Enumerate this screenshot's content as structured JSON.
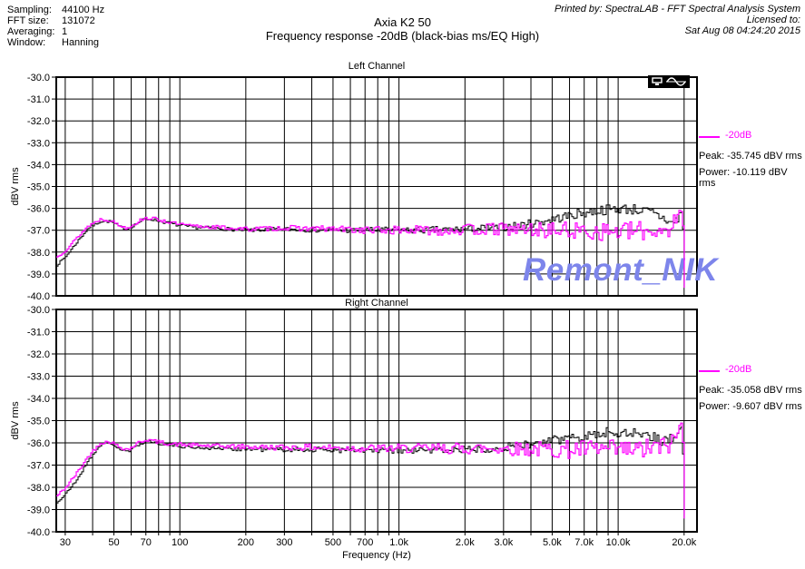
{
  "header": {
    "left": [
      {
        "label": "Sampling:",
        "value": "44100 Hz"
      },
      {
        "label": "FFT size:",
        "value": "131072"
      },
      {
        "label": "Averaging:",
        "value": "1"
      },
      {
        "label": "Window:",
        "value": "Hanning"
      }
    ],
    "title_line1": "Axia K2 50",
    "title_line2": "Frequency response -20dB (black-bias ms/EQ High)",
    "right_line1": "Printed by: SpectraLAB - FFT Spectral Analysis System",
    "right_line2": "Licensed to:",
    "right_line3": "Sat Aug 08 04:24:20 2015"
  },
  "watermark": "Remont_NIK",
  "colors": {
    "trace_black": "#000000",
    "trace_magenta": "#ff00ff",
    "watermark_blue": "#7d85eb"
  },
  "chart_data": [
    {
      "type": "line",
      "title": "Left Channel",
      "ylabel": "dBV rms",
      "xlabel": "",
      "ylim": [
        -40.0,
        -30.0
      ],
      "xlim_hz": [
        27.3,
        22900
      ],
      "x_scale": "log",
      "grid": true,
      "legend_position": "right",
      "y_ticks": [
        {
          "v": -30,
          "label": "-30.0"
        },
        {
          "v": -31,
          "label": "-31.0"
        },
        {
          "v": -32,
          "label": "-32.0"
        },
        {
          "v": -33,
          "label": "-33.0"
        },
        {
          "v": -34,
          "label": "-34.0"
        },
        {
          "v": -35,
          "label": "-35.0"
        },
        {
          "v": -36,
          "label": "-36.0"
        },
        {
          "v": -37,
          "label": "-37.0"
        },
        {
          "v": -38,
          "label": "-38.0"
        },
        {
          "v": -39,
          "label": "-39.0"
        },
        {
          "v": -40,
          "label": "-40.0"
        }
      ],
      "grid_freqs": [
        30,
        40,
        50,
        60,
        70,
        80,
        90,
        100,
        200,
        300,
        400,
        500,
        600,
        700,
        800,
        900,
        1000,
        2000,
        3000,
        4000,
        5000,
        6000,
        7000,
        8000,
        9000,
        10000,
        20000
      ],
      "x_tick_labels": [],
      "legend": {
        "label": "-20dB",
        "peak": "Peak: -35.745 dBV rms",
        "power": "Power: -10.119 dBV rms"
      },
      "series": [
        {
          "name": "black-bias ms/EQ High",
          "color": "#000000",
          "seed": 7,
          "base": [
            [
              26,
              -38.8
            ],
            [
              30,
              -38.2
            ],
            [
              34,
              -37.5
            ],
            [
              38,
              -36.9
            ],
            [
              43,
              -36.6
            ],
            [
              48,
              -36.6
            ],
            [
              53,
              -36.85
            ],
            [
              57,
              -36.95
            ],
            [
              62,
              -36.75
            ],
            [
              68,
              -36.5
            ],
            [
              74,
              -36.5
            ],
            [
              82,
              -36.6
            ],
            [
              95,
              -36.75
            ],
            [
              110,
              -36.85
            ],
            [
              140,
              -36.9
            ],
            [
              200,
              -37.0
            ],
            [
              300,
              -36.95
            ],
            [
              500,
              -37.0
            ],
            [
              800,
              -37.0
            ],
            [
              1200,
              -37.0
            ],
            [
              2000,
              -36.95
            ],
            [
              3000,
              -36.85
            ],
            [
              4000,
              -36.7
            ],
            [
              5000,
              -36.5
            ],
            [
              6500,
              -36.25
            ],
            [
              8000,
              -36.1
            ],
            [
              10000,
              -36.0
            ],
            [
              12000,
              -36.05
            ],
            [
              14000,
              -36.2
            ],
            [
              16000,
              -36.45
            ],
            [
              17500,
              -36.7
            ],
            [
              18500,
              -36.5
            ],
            [
              19300,
              -36.2
            ],
            [
              19700,
              -37.0
            ],
            [
              20000,
              -38.3
            ],
            [
              20300,
              -38.6
            ]
          ],
          "noise": [
            [
              26,
              0.05
            ],
            [
              100,
              0.07
            ],
            [
              300,
              0.1
            ],
            [
              1000,
              0.15
            ],
            [
              3000,
              0.18
            ],
            [
              6000,
              0.22
            ],
            [
              12000,
              0.25
            ],
            [
              17000,
              0.25
            ],
            [
              19000,
              0.3
            ],
            [
              20300,
              0.12
            ]
          ]
        },
        {
          "name": "-20dB",
          "color": "#ff00ff",
          "seed": 13,
          "base": [
            [
              26,
              -38.4
            ],
            [
              30,
              -37.9
            ],
            [
              34,
              -37.3
            ],
            [
              38,
              -36.8
            ],
            [
              43,
              -36.5
            ],
            [
              48,
              -36.55
            ],
            [
              53,
              -36.8
            ],
            [
              57,
              -36.9
            ],
            [
              62,
              -36.7
            ],
            [
              68,
              -36.45
            ],
            [
              74,
              -36.45
            ],
            [
              82,
              -36.55
            ],
            [
              95,
              -36.7
            ],
            [
              110,
              -36.8
            ],
            [
              140,
              -36.85
            ],
            [
              200,
              -36.95
            ],
            [
              300,
              -36.9
            ],
            [
              500,
              -36.95
            ],
            [
              800,
              -37.0
            ],
            [
              1500,
              -37.0
            ],
            [
              3000,
              -36.95
            ],
            [
              5000,
              -37.0
            ],
            [
              8000,
              -37.05
            ],
            [
              12000,
              -37.05
            ],
            [
              15000,
              -37.0
            ],
            [
              17000,
              -36.9
            ],
            [
              18500,
              -36.5
            ],
            [
              19200,
              -36.15
            ],
            [
              19600,
              -36.4
            ],
            [
              19900,
              -37.8
            ],
            [
              20100,
              -40.5
            ],
            [
              20200,
              -41.5
            ]
          ],
          "noise": [
            [
              26,
              0.06
            ],
            [
              100,
              0.08
            ],
            [
              300,
              0.12
            ],
            [
              1000,
              0.2
            ],
            [
              3000,
              0.3
            ],
            [
              6000,
              0.4
            ],
            [
              12000,
              0.45
            ],
            [
              17000,
              0.45
            ],
            [
              19300,
              0.3
            ],
            [
              19800,
              0.12
            ],
            [
              20200,
              0.05
            ]
          ]
        }
      ]
    },
    {
      "type": "line",
      "title": "Right Channel",
      "ylabel": "dBV rms",
      "xlabel": "Frequency (Hz)",
      "ylim": [
        -40.0,
        -30.0
      ],
      "xlim_hz": [
        27.3,
        22900
      ],
      "x_scale": "log",
      "grid": true,
      "legend_position": "right",
      "y_ticks": [
        {
          "v": -30,
          "label": "-30.0"
        },
        {
          "v": -31,
          "label": "-31.0"
        },
        {
          "v": -32,
          "label": "-32.0"
        },
        {
          "v": -33,
          "label": "-33.0"
        },
        {
          "v": -34,
          "label": "-34.0"
        },
        {
          "v": -35,
          "label": "-35.0"
        },
        {
          "v": -36,
          "label": "-36.0"
        },
        {
          "v": -37,
          "label": "-37.0"
        },
        {
          "v": -38,
          "label": "-38.0"
        },
        {
          "v": -39,
          "label": "-39.0"
        },
        {
          "v": -40,
          "label": "-40.0"
        }
      ],
      "grid_freqs": [
        30,
        40,
        50,
        60,
        70,
        80,
        90,
        100,
        200,
        300,
        400,
        500,
        600,
        700,
        800,
        900,
        1000,
        2000,
        3000,
        4000,
        5000,
        6000,
        7000,
        8000,
        9000,
        10000,
        20000
      ],
      "x_tick_labels": [
        {
          "f": 30,
          "label": "30"
        },
        {
          "f": 50,
          "label": "50"
        },
        {
          "f": 70,
          "label": "70"
        },
        {
          "f": 100,
          "label": "100"
        },
        {
          "f": 200,
          "label": "200"
        },
        {
          "f": 300,
          "label": "300"
        },
        {
          "f": 500,
          "label": "500"
        },
        {
          "f": 700,
          "label": "700"
        },
        {
          "f": 1000,
          "label": "1.0k"
        },
        {
          "f": 2000,
          "label": "2.0k"
        },
        {
          "f": 3000,
          "label": "3.0k"
        },
        {
          "f": 5000,
          "label": "5.0k"
        },
        {
          "f": 7000,
          "label": "7.0k"
        },
        {
          "f": 10000,
          "label": "10.0k"
        },
        {
          "f": 20000,
          "label": "20.0k"
        }
      ],
      "legend": {
        "label": "-20dB",
        "peak": "Peak: -35.058 dBV rms",
        "power": "Power: -9.607 dBV rms"
      },
      "series": [
        {
          "name": "black-bias ms/EQ High",
          "color": "#000000",
          "seed": 21,
          "base": [
            [
              26,
              -38.9
            ],
            [
              30,
              -38.3
            ],
            [
              34,
              -37.6
            ],
            [
              38,
              -36.8
            ],
            [
              43,
              -36.1
            ],
            [
              48,
              -36.0
            ],
            [
              53,
              -36.3
            ],
            [
              58,
              -36.4
            ],
            [
              64,
              -36.1
            ],
            [
              70,
              -35.9
            ],
            [
              78,
              -36.0
            ],
            [
              90,
              -36.1
            ],
            [
              110,
              -36.2
            ],
            [
              150,
              -36.25
            ],
            [
              250,
              -36.3
            ],
            [
              400,
              -36.3
            ],
            [
              700,
              -36.35
            ],
            [
              1200,
              -36.35
            ],
            [
              2000,
              -36.3
            ],
            [
              3000,
              -36.2
            ],
            [
              4500,
              -36.0
            ],
            [
              6000,
              -35.75
            ],
            [
              8000,
              -35.6
            ],
            [
              10000,
              -35.5
            ],
            [
              12000,
              -35.55
            ],
            [
              14000,
              -35.7
            ],
            [
              16000,
              -35.9
            ],
            [
              17500,
              -35.8
            ],
            [
              18800,
              -35.4
            ],
            [
              19400,
              -35.3
            ],
            [
              19800,
              -36.8
            ],
            [
              20100,
              -38.8
            ],
            [
              20300,
              -39.6
            ]
          ],
          "noise": [
            [
              26,
              0.05
            ],
            [
              100,
              0.07
            ],
            [
              1000,
              0.15
            ],
            [
              4000,
              0.2
            ],
            [
              10000,
              0.25
            ],
            [
              17000,
              0.3
            ],
            [
              19500,
              0.3
            ],
            [
              20300,
              0.1
            ]
          ]
        },
        {
          "name": "-20dB",
          "color": "#ff00ff",
          "seed": 42,
          "base": [
            [
              26,
              -38.6
            ],
            [
              30,
              -38.0
            ],
            [
              34,
              -37.3
            ],
            [
              38,
              -36.6
            ],
            [
              43,
              -36.0
            ],
            [
              48,
              -35.95
            ],
            [
              53,
              -36.2
            ],
            [
              58,
              -36.3
            ],
            [
              64,
              -36.0
            ],
            [
              70,
              -35.85
            ],
            [
              78,
              -35.95
            ],
            [
              90,
              -36.05
            ],
            [
              110,
              -36.1
            ],
            [
              150,
              -36.15
            ],
            [
              250,
              -36.2
            ],
            [
              400,
              -36.2
            ],
            [
              700,
              -36.25
            ],
            [
              1500,
              -36.25
            ],
            [
              3000,
              -36.25
            ],
            [
              5000,
              -36.3
            ],
            [
              8000,
              -36.3
            ],
            [
              12000,
              -36.35
            ],
            [
              15000,
              -36.2
            ],
            [
              17000,
              -36.1
            ],
            [
              18300,
              -35.7
            ],
            [
              19200,
              -35.1
            ],
            [
              19600,
              -35.6
            ],
            [
              19900,
              -37.5
            ],
            [
              20150,
              -40.8
            ],
            [
              20250,
              -41.5
            ]
          ],
          "noise": [
            [
              26,
              0.07
            ],
            [
              100,
              0.09
            ],
            [
              300,
              0.13
            ],
            [
              1000,
              0.2
            ],
            [
              3000,
              0.3
            ],
            [
              6000,
              0.42
            ],
            [
              12000,
              0.48
            ],
            [
              16000,
              0.45
            ],
            [
              19000,
              0.3
            ],
            [
              19800,
              0.12
            ],
            [
              20250,
              0.05
            ]
          ]
        }
      ]
    }
  ]
}
